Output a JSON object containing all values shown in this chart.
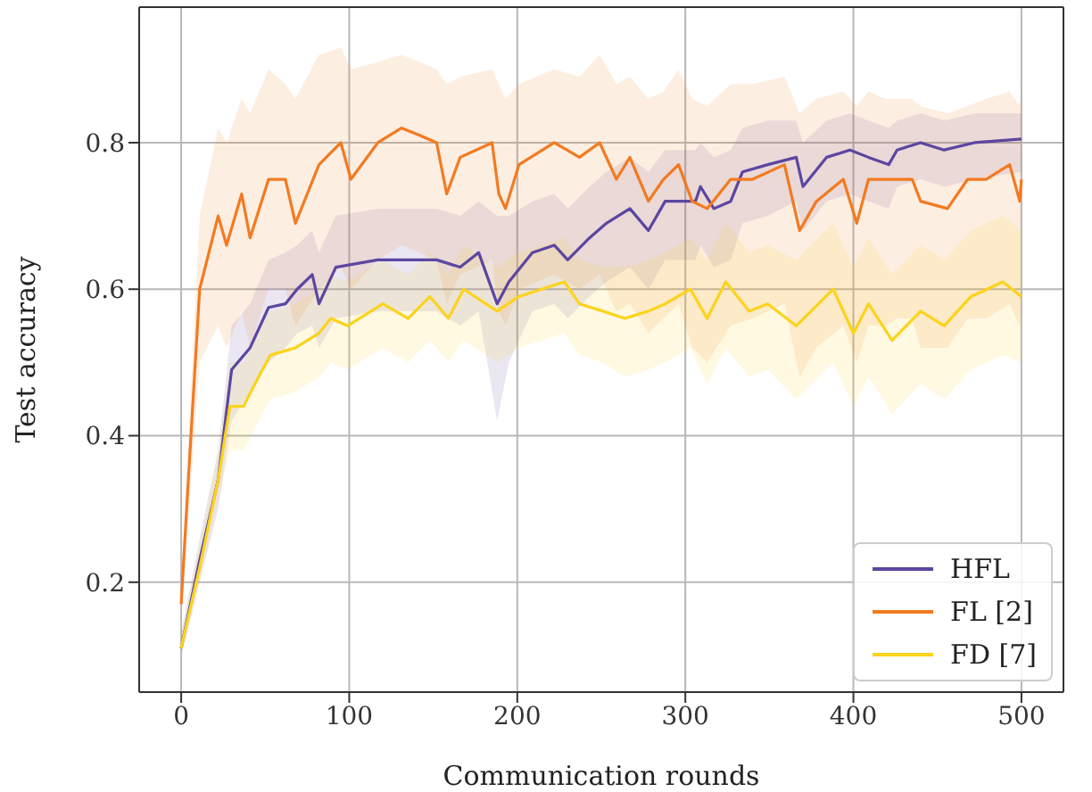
{
  "chart_data": {
    "type": "line",
    "xlabel": "Communication rounds",
    "ylabel": "Test accuracy",
    "xlim": [
      -25,
      525
    ],
    "xticks": [
      0,
      100,
      200,
      300,
      400,
      500
    ],
    "ylim": [
      0.05,
      0.985
    ],
    "yticks": [
      0.2,
      0.4,
      0.6,
      0.8
    ],
    "grid": true,
    "legend": "bottom right",
    "marker": "none",
    "line_style": "solid",
    "series": [
      {
        "name": "HFL",
        "color": "#5b46a0",
        "x": [
          0,
          11,
          22,
          30,
          41,
          52,
          62,
          69,
          78,
          82,
          92,
          117,
          135,
          152,
          166,
          177,
          188,
          195,
          209,
          222,
          230,
          243,
          253,
          267,
          278,
          288,
          306,
          309,
          317,
          327,
          334,
          349,
          366,
          370,
          384,
          398,
          409,
          421,
          426,
          440,
          454,
          472,
          500
        ],
        "values": [
          0.11,
          0.23,
          0.34,
          0.49,
          0.52,
          0.575,
          0.58,
          0.6,
          0.62,
          0.58,
          0.63,
          0.64,
          0.64,
          0.64,
          0.63,
          0.65,
          0.58,
          0.61,
          0.65,
          0.66,
          0.64,
          0.67,
          0.69,
          0.71,
          0.68,
          0.72,
          0.72,
          0.74,
          0.71,
          0.72,
          0.76,
          0.77,
          0.78,
          0.74,
          0.78,
          0.79,
          0.78,
          0.77,
          0.79,
          0.8,
          0.79,
          0.8,
          0.805
        ],
        "lower": [
          0.1,
          0.2,
          0.3,
          0.42,
          0.46,
          0.5,
          0.52,
          0.54,
          0.55,
          0.52,
          0.56,
          0.57,
          0.57,
          0.57,
          0.55,
          0.57,
          0.42,
          0.5,
          0.57,
          0.58,
          0.56,
          0.59,
          0.61,
          0.63,
          0.6,
          0.64,
          0.64,
          0.66,
          0.63,
          0.64,
          0.69,
          0.7,
          0.72,
          0.68,
          0.72,
          0.73,
          0.72,
          0.71,
          0.74,
          0.75,
          0.74,
          0.75,
          0.76
        ],
        "upper": [
          0.13,
          0.26,
          0.38,
          0.55,
          0.58,
          0.64,
          0.65,
          0.66,
          0.68,
          0.65,
          0.7,
          0.71,
          0.71,
          0.71,
          0.7,
          0.72,
          0.7,
          0.7,
          0.72,
          0.73,
          0.71,
          0.74,
          0.76,
          0.78,
          0.76,
          0.79,
          0.79,
          0.8,
          0.78,
          0.79,
          0.82,
          0.83,
          0.83,
          0.8,
          0.83,
          0.84,
          0.83,
          0.82,
          0.83,
          0.84,
          0.83,
          0.84,
          0.84
        ]
      },
      {
        "name": "FL [2]",
        "color": "#f37a20",
        "x": [
          0,
          4,
          11,
          22,
          27,
          36,
          41,
          52,
          62,
          68,
          82,
          95,
          101,
          117,
          131,
          142,
          152,
          158,
          166,
          185,
          189,
          193,
          201,
          222,
          237,
          249,
          259,
          267,
          278,
          287,
          296,
          304,
          313,
          327,
          340,
          359,
          368,
          378,
          394,
          402,
          409,
          419,
          426,
          435,
          440,
          456,
          468,
          479,
          493,
          499,
          500
        ],
        "values": [
          0.17,
          0.33,
          0.6,
          0.7,
          0.66,
          0.73,
          0.67,
          0.75,
          0.75,
          0.69,
          0.77,
          0.8,
          0.75,
          0.8,
          0.82,
          0.81,
          0.8,
          0.73,
          0.78,
          0.8,
          0.73,
          0.71,
          0.77,
          0.8,
          0.78,
          0.8,
          0.75,
          0.78,
          0.72,
          0.75,
          0.77,
          0.72,
          0.71,
          0.75,
          0.75,
          0.77,
          0.68,
          0.72,
          0.75,
          0.69,
          0.75,
          0.75,
          0.75,
          0.75,
          0.72,
          0.71,
          0.75,
          0.75,
          0.77,
          0.72,
          0.75
        ],
        "lower": [
          0.15,
          0.28,
          0.5,
          0.55,
          0.52,
          0.57,
          0.52,
          0.6,
          0.6,
          0.55,
          0.6,
          0.63,
          0.6,
          0.64,
          0.66,
          0.65,
          0.64,
          0.58,
          0.62,
          0.64,
          0.57,
          0.55,
          0.6,
          0.62,
          0.6,
          0.62,
          0.57,
          0.58,
          0.54,
          0.56,
          0.58,
          0.52,
          0.5,
          0.55,
          0.56,
          0.58,
          0.48,
          0.52,
          0.55,
          0.5,
          0.55,
          0.55,
          0.56,
          0.56,
          0.52,
          0.52,
          0.56,
          0.56,
          0.58,
          0.55,
          0.58
        ],
        "upper": [
          0.19,
          0.38,
          0.7,
          0.82,
          0.8,
          0.86,
          0.84,
          0.9,
          0.88,
          0.86,
          0.92,
          0.93,
          0.9,
          0.91,
          0.92,
          0.91,
          0.9,
          0.88,
          0.89,
          0.9,
          0.88,
          0.86,
          0.88,
          0.9,
          0.89,
          0.92,
          0.88,
          0.89,
          0.86,
          0.87,
          0.9,
          0.86,
          0.85,
          0.88,
          0.88,
          0.89,
          0.84,
          0.86,
          0.87,
          0.85,
          0.87,
          0.86,
          0.86,
          0.86,
          0.85,
          0.84,
          0.85,
          0.86,
          0.87,
          0.85,
          0.88
        ]
      },
      {
        "name": "FD [7]",
        "color": "#fcd31c",
        "x": [
          0,
          11,
          22,
          29,
          37,
          46,
          53,
          68,
          82,
          89,
          99,
          120,
          135,
          148,
          159,
          168,
          188,
          201,
          228,
          237,
          251,
          264,
          278,
          288,
          303,
          313,
          324,
          338,
          349,
          366,
          388,
          400,
          409,
          423,
          440,
          454,
          470,
          489,
          500
        ],
        "values": [
          0.11,
          0.22,
          0.34,
          0.44,
          0.44,
          0.48,
          0.51,
          0.52,
          0.54,
          0.56,
          0.55,
          0.58,
          0.56,
          0.59,
          0.56,
          0.6,
          0.57,
          0.59,
          0.61,
          0.58,
          0.57,
          0.56,
          0.57,
          0.58,
          0.6,
          0.56,
          0.61,
          0.57,
          0.58,
          0.55,
          0.6,
          0.54,
          0.58,
          0.53,
          0.57,
          0.55,
          0.59,
          0.61,
          0.59
        ],
        "lower": [
          0.1,
          0.2,
          0.31,
          0.38,
          0.38,
          0.42,
          0.45,
          0.46,
          0.48,
          0.5,
          0.49,
          0.52,
          0.5,
          0.53,
          0.5,
          0.53,
          0.5,
          0.52,
          0.54,
          0.51,
          0.5,
          0.48,
          0.49,
          0.5,
          0.52,
          0.47,
          0.52,
          0.48,
          0.49,
          0.45,
          0.5,
          0.44,
          0.48,
          0.43,
          0.47,
          0.45,
          0.49,
          0.51,
          0.5
        ],
        "upper": [
          0.13,
          0.25,
          0.38,
          0.5,
          0.5,
          0.54,
          0.57,
          0.58,
          0.6,
          0.62,
          0.61,
          0.64,
          0.62,
          0.65,
          0.62,
          0.66,
          0.63,
          0.65,
          0.67,
          0.64,
          0.63,
          0.63,
          0.64,
          0.65,
          0.67,
          0.64,
          0.69,
          0.65,
          0.66,
          0.64,
          0.69,
          0.63,
          0.67,
          0.62,
          0.66,
          0.64,
          0.68,
          0.7,
          0.68
        ]
      }
    ]
  }
}
